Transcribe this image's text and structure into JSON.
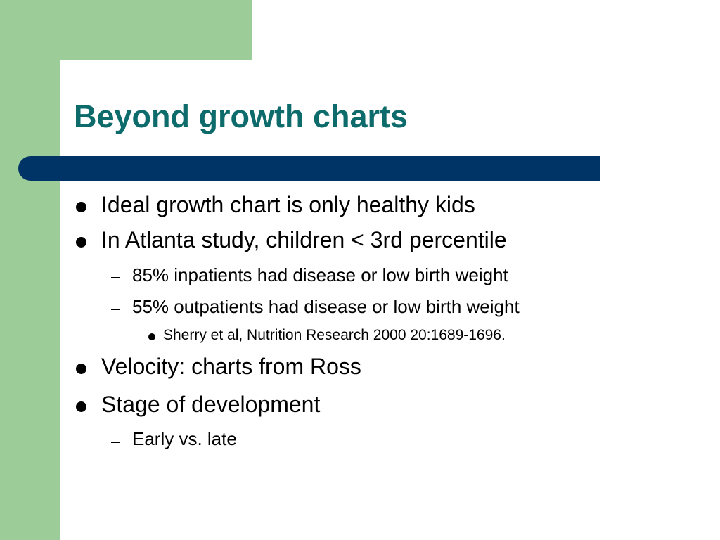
{
  "slide": {
    "title": "Beyond growth charts",
    "bullets": [
      {
        "level": 1,
        "text": "Ideal growth chart is only healthy kids"
      },
      {
        "level": 1,
        "text": "In Atlanta study, children < 3rd percentile"
      },
      {
        "level": 2,
        "text": "85% inpatients had disease or low birth weight"
      },
      {
        "level": 2,
        "text": "55% outpatients had disease or low birth weight"
      },
      {
        "level": 3,
        "text": "Sherry et al, Nutrition Research 2000 20:1689-1696."
      },
      {
        "level": 1,
        "text": "Velocity: charts from Ross"
      },
      {
        "level": 1,
        "text": "Stage of development"
      },
      {
        "level": 2,
        "text": "Early vs. late"
      }
    ]
  },
  "colors": {
    "accent_green": "#9ccc98",
    "title_teal": "#0e6b6b",
    "title_bar_navy": "#003366",
    "text": "#000000"
  }
}
